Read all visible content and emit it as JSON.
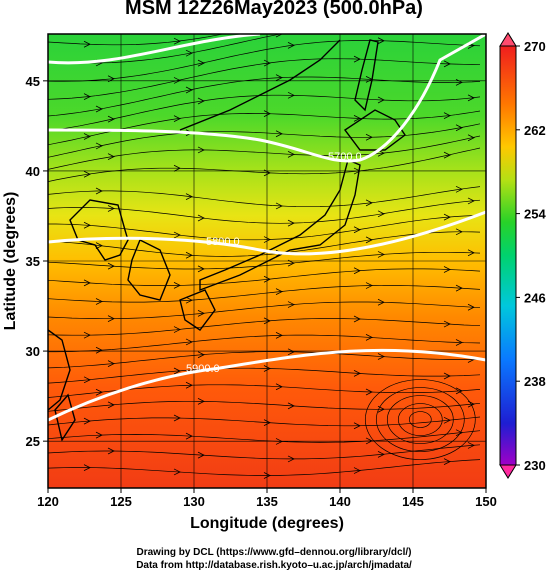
{
  "title": "MSM 12Z26May2023 (500.0hPa)",
  "x_axis": {
    "label": "Longitude (degrees)",
    "ticks": [
      "120",
      "125",
      "130",
      "135",
      "140",
      "145",
      "150"
    ],
    "range": [
      120,
      150
    ]
  },
  "y_axis": {
    "label": "Latitude  (degrees)",
    "ticks": [
      "25",
      "30",
      "35",
      "40",
      "45"
    ],
    "range": [
      22.4,
      47.6
    ]
  },
  "colorbar": {
    "ticks": [
      "270",
      "262",
      "254",
      "246",
      "238",
      "230"
    ],
    "range": [
      230,
      270
    ],
    "colors": [
      "#ff2aa0",
      "#a000c8",
      "#1e1ed2",
      "#0a78ff",
      "#00c8dc",
      "#00d26e",
      "#28d228",
      "#78dc14",
      "#d2e614",
      "#ffc800",
      "#ff8c00",
      "#ff4b00",
      "#f01e1e",
      "#ff6478"
    ]
  },
  "contours": [
    {
      "label": "5700.0",
      "lat": 41.5
    },
    {
      "label": "5800.0",
      "lat": 36.5
    },
    {
      "label": "5900.0",
      "lat": 29.3
    }
  ],
  "credits": {
    "line1": "Drawing by DCL (https://www.gfd–dennou.org/library/dcl/)",
    "line2": "Data from http://database.rish.kyoto–u.ac.jp/arch/jmadata/"
  }
}
